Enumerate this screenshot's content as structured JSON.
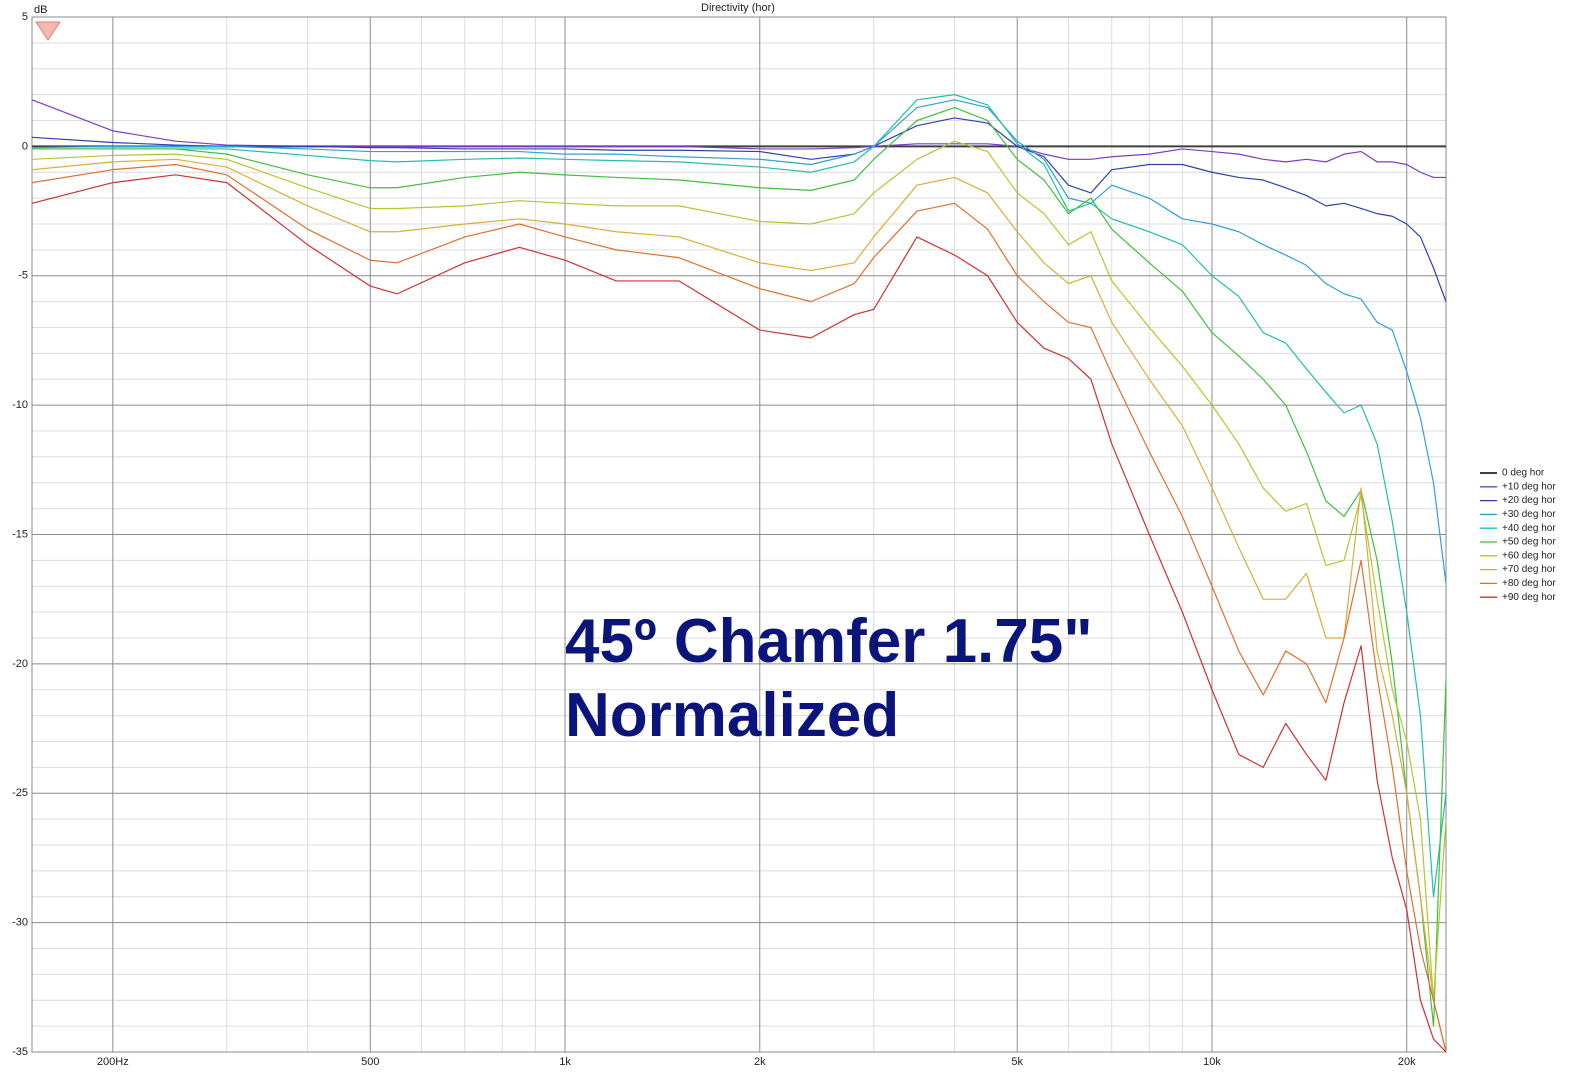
{
  "chart_data": {
    "type": "line",
    "title": "Directivity (hor)",
    "ylabel": "dB",
    "annotations": [
      "45º Chamfer 1.75\"",
      "Normalized"
    ],
    "xscale": "log",
    "grid": true,
    "minor_grid": true,
    "legend": "right",
    "xlim": [
      150,
      23000
    ],
    "ylim": [
      -35,
      5
    ],
    "xticks": [
      {
        "value": 200,
        "label": "200Hz"
      },
      500,
      {
        "value": 1000,
        "label": "1k"
      },
      {
        "value": 2000,
        "label": "2k"
      },
      {
        "value": 5000,
        "label": "5k"
      },
      {
        "value": 10000,
        "label": "10k"
      },
      {
        "value": 20000,
        "label": "20k"
      }
    ],
    "yticks": [
      5,
      0,
      -5,
      -10,
      -15,
      -20,
      -25,
      -30,
      -35
    ],
    "x": [
      150,
      200,
      250,
      300,
      400,
      500,
      550,
      700,
      850,
      1000,
      1200,
      1500,
      2000,
      2400,
      2800,
      3000,
      3500,
      4000,
      4500,
      5000,
      5500,
      6000,
      6500,
      7000,
      8000,
      9000,
      10000,
      11000,
      12000,
      13000,
      14000,
      15000,
      16000,
      17000,
      18000,
      19000,
      20000,
      21000,
      22000,
      23000
    ],
    "series": [
      {
        "name": "0 deg hor",
        "color": "#404040",
        "values": [
          0,
          0,
          0,
          0,
          0,
          0,
          0,
          0,
          0,
          0,
          0,
          0,
          0,
          0,
          0,
          0,
          0,
          0,
          0,
          0,
          0,
          0,
          0,
          0,
          0,
          0,
          0,
          0,
          0,
          0,
          0,
          0,
          0,
          0,
          0,
          0,
          0,
          0,
          0,
          0
        ]
      },
      {
        "name": "+10 deg hor",
        "color": "#7a3cc8",
        "values": [
          1.8,
          0.6,
          0.2,
          0.05,
          0,
          0,
          0,
          0,
          0,
          0,
          0,
          0,
          -0.1,
          -0.1,
          -0.05,
          0,
          0.1,
          0.1,
          0.1,
          0,
          -0.3,
          -0.5,
          -0.5,
          -0.4,
          -0.3,
          -0.1,
          -0.2,
          -0.3,
          -0.5,
          -0.6,
          -0.5,
          -0.6,
          -0.3,
          -0.2,
          -0.6,
          -0.6,
          -0.7,
          -1.0,
          -1.2,
          -1.2
        ]
      },
      {
        "name": "+20 deg hor",
        "color": "#3040b0",
        "values": [
          0.35,
          0.15,
          0.05,
          0,
          0,
          -0.05,
          -0.05,
          -0.1,
          -0.1,
          -0.1,
          -0.15,
          -0.15,
          -0.2,
          -0.5,
          -0.3,
          0,
          0.8,
          1.1,
          0.9,
          0,
          -0.4,
          -1.5,
          -1.8,
          -0.9,
          -0.7,
          -0.7,
          -1.0,
          -1.2,
          -1.3,
          -1.6,
          -1.9,
          -2.3,
          -2.2,
          -2.4,
          -2.6,
          -2.7,
          -3.0,
          -3.5,
          -4.7,
          -6.0
        ]
      },
      {
        "name": "+30 deg hor",
        "color": "#30a0d8",
        "values": [
          -0.05,
          0,
          0,
          0,
          -0.1,
          -0.2,
          -0.2,
          -0.2,
          -0.2,
          -0.3,
          -0.3,
          -0.4,
          -0.5,
          -0.7,
          -0.3,
          0,
          1.5,
          1.8,
          1.5,
          0.2,
          -0.5,
          -2.0,
          -2.2,
          -1.5,
          -2.0,
          -2.8,
          -3.0,
          -3.3,
          -3.8,
          -4.2,
          -4.6,
          -5.3,
          -5.7,
          -5.9,
          -6.8,
          -7.1,
          -8.7,
          -10.5,
          -13.0,
          -16.9
        ]
      },
      {
        "name": "+40 deg hor",
        "color": "#20c0a8",
        "values": [
          -0.1,
          -0.1,
          -0.1,
          -0.1,
          -0.35,
          -0.55,
          -0.6,
          -0.5,
          -0.45,
          -0.5,
          -0.55,
          -0.6,
          -0.8,
          -1.0,
          -0.6,
          0,
          1.8,
          2.0,
          1.6,
          0.1,
          -0.7,
          -2.5,
          -2.2,
          -2.8,
          -3.3,
          -3.8,
          -5.0,
          -5.8,
          -7.2,
          -7.6,
          -8.6,
          -9.5,
          -10.3,
          -10.0,
          -11.5,
          -14.5,
          -18.0,
          -22.0,
          -29.0,
          -25.0
        ]
      },
      {
        "name": "+50 deg hor",
        "color": "#40c040",
        "values": [
          -0.1,
          -0.1,
          -0.1,
          -0.3,
          -1.1,
          -1.6,
          -1.6,
          -1.2,
          -1.0,
          -1.1,
          -1.2,
          -1.3,
          -1.6,
          -1.7,
          -1.3,
          -0.5,
          1.0,
          1.5,
          1.0,
          -0.5,
          -1.3,
          -2.6,
          -2.0,
          -3.2,
          -4.5,
          -5.6,
          -7.2,
          -8.1,
          -9.0,
          -10.0,
          -11.8,
          -13.7,
          -14.3,
          -13.3,
          -16.0,
          -20.0,
          -25.0,
          -29.0,
          -34.0,
          -20.6
        ]
      },
      {
        "name": "+60 deg hor",
        "color": "#b0c830",
        "values": [
          -0.5,
          -0.35,
          -0.3,
          -0.5,
          -1.6,
          -2.4,
          -2.4,
          -2.3,
          -2.1,
          -2.2,
          -2.3,
          -2.3,
          -2.9,
          -3.0,
          -2.6,
          -1.8,
          -0.5,
          0.2,
          -0.2,
          -1.8,
          -2.6,
          -3.8,
          -3.3,
          -5.2,
          -7.0,
          -8.5,
          -10.0,
          -11.5,
          -13.2,
          -14.1,
          -13.8,
          -16.2,
          -16.0,
          -13.5,
          -17.5,
          -21.0,
          -23.0,
          -26.0,
          -33.0,
          -26.0
        ]
      },
      {
        "name": "+70 deg hor",
        "color": "#dcac38",
        "values": [
          -0.9,
          -0.6,
          -0.5,
          -0.8,
          -2.3,
          -3.3,
          -3.3,
          -3.0,
          -2.8,
          -3.0,
          -3.3,
          -3.5,
          -4.5,
          -4.8,
          -4.5,
          -3.5,
          -1.5,
          -1.2,
          -1.8,
          -3.3,
          -4.5,
          -5.3,
          -5.0,
          -6.8,
          -9.0,
          -10.8,
          -13.2,
          -15.5,
          -17.5,
          -17.5,
          -16.5,
          -19.0,
          -19.0,
          -13.2,
          -19.5,
          -22.0,
          -25.0,
          -29.0,
          -33.0,
          -35.0
        ]
      },
      {
        "name": "+80 deg hor",
        "color": "#e07030",
        "values": [
          -1.4,
          -0.9,
          -0.7,
          -1.1,
          -3.2,
          -4.4,
          -4.5,
          -3.5,
          -3.0,
          -3.5,
          -4.0,
          -4.3,
          -5.5,
          -6.0,
          -5.3,
          -4.3,
          -2.5,
          -2.2,
          -3.2,
          -5.0,
          -6.0,
          -6.8,
          -7.0,
          -8.8,
          -11.8,
          -14.3,
          -17.0,
          -19.5,
          -21.2,
          -19.5,
          -20.0,
          -21.5,
          -19.0,
          -16.0,
          -20.5,
          -24.0,
          -28.0,
          -31.0,
          -33.0,
          -35.0
        ]
      },
      {
        "name": "+90 deg hor",
        "color": "#d03030",
        "values": [
          -2.2,
          -1.4,
          -1.1,
          -1.4,
          -3.8,
          -5.4,
          -5.7,
          -4.5,
          -3.9,
          -4.4,
          -5.2,
          -5.2,
          -7.1,
          -7.4,
          -6.5,
          -6.3,
          -3.5,
          -4.2,
          -5.0,
          -6.8,
          -7.8,
          -8.2,
          -9.0,
          -11.5,
          -15.0,
          -18.0,
          -21.0,
          -23.5,
          -24.0,
          -22.3,
          -23.5,
          -24.5,
          -21.5,
          -19.3,
          -24.5,
          -27.5,
          -29.5,
          -33.0,
          -34.5,
          -35.0
        ]
      }
    ]
  }
}
